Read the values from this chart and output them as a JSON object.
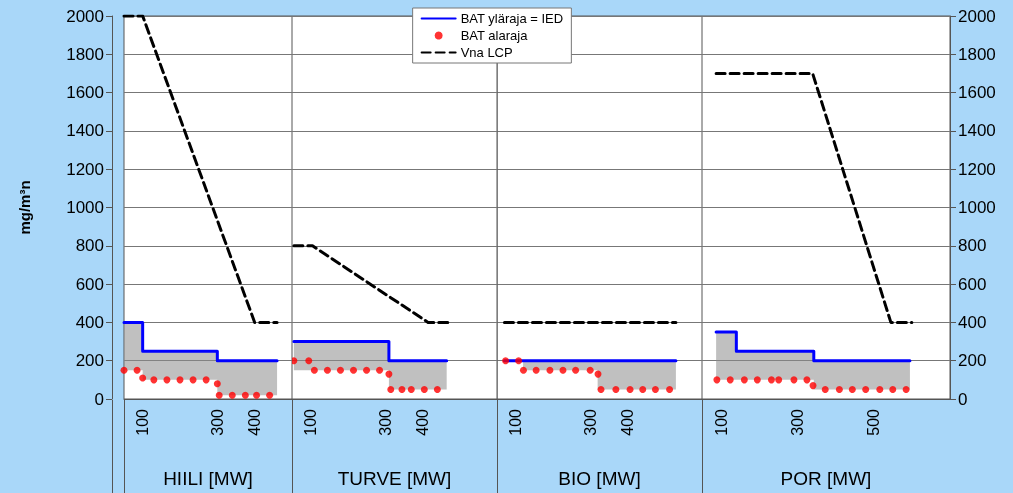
{
  "chart_data": [
    {
      "type": "line",
      "xlabel": "HIILI [MW]",
      "ylabel": "mg/m³n",
      "xlim": [
        50,
        500
      ],
      "xticks": [
        100,
        300,
        400
      ],
      "ylim": [
        0,
        2000
      ],
      "yticks": [
        0,
        200,
        400,
        600,
        800,
        1000,
        1200,
        1400,
        1600,
        1800,
        2000
      ],
      "grid": "y",
      "series": [
        {
          "type": "line",
          "color": "#0000ff",
          "line_style": "solid",
          "marker": "none",
          "x": [
            50,
            100,
            100,
            300,
            300,
            460
          ],
          "values": [
            400,
            400,
            250,
            250,
            200,
            200
          ],
          "upper": [
            400,
            400,
            250,
            250,
            200,
            200
          ],
          "lower": [
            150,
            150,
            100,
            100,
            20,
            20
          ]
        },
        {
          "type": "scatter",
          "color": "#ff0000",
          "marker": "circle",
          "x": [
            50,
            85,
            100,
            130,
            165,
            200,
            235,
            270,
            300,
            305,
            340,
            375,
            405,
            440
          ],
          "values": [
            150,
            150,
            110,
            100,
            100,
            100,
            100,
            100,
            80,
            20,
            20,
            20,
            20,
            20
          ]
        },
        {
          "type": "line",
          "color": "#000000",
          "line_style": "dashed",
          "marker": "none",
          "x": [
            50,
            100,
            400,
            460
          ],
          "values": [
            2000,
            2000,
            400,
            400
          ]
        }
      ]
    },
    {
      "type": "line",
      "xlabel": "TURVE [MW]",
      "xlim": [
        50,
        600
      ],
      "xticks": [
        100,
        300,
        400
      ],
      "ylim": [
        0,
        2000
      ],
      "yticks": [
        0,
        200,
        400,
        600,
        800,
        1000,
        1200,
        1400,
        1600,
        1800,
        2000
      ],
      "grid": "y",
      "tick_labels": "x",
      "legend": "top",
      "series": [
        {
          "type": "line",
          "name": "BAT yläraja = IED",
          "color": "#0000ff",
          "line_style": "solid",
          "marker": "none",
          "x": [
            55,
            310,
            310,
            465
          ],
          "values": [
            300,
            300,
            200,
            200
          ],
          "upper": [
            300,
            300,
            200,
            200
          ],
          "lower": [
            150,
            150,
            50,
            50
          ]
        },
        {
          "type": "scatter",
          "name": "BAT alaraja",
          "color": "#ff0000",
          "marker": "circle",
          "x": [
            55,
            95,
            110,
            145,
            180,
            215,
            250,
            285,
            310,
            315,
            345,
            370,
            405,
            440
          ],
          "values": [
            200,
            200,
            150,
            150,
            150,
            150,
            150,
            150,
            130,
            50,
            50,
            50,
            50,
            50
          ]
        },
        {
          "type": "line",
          "name": "Vna LCP",
          "color": "#000000",
          "line_style": "dashed",
          "marker": "none",
          "x": [
            55,
            105,
            415,
            470
          ],
          "values": [
            800,
            800,
            400,
            400
          ]
        }
      ]
    },
    {
      "type": "line",
      "xlabel": "BIO [MW]",
      "xlim": [
        50,
        600
      ],
      "xticks": [
        100,
        300,
        400
      ],
      "ylim": [
        0,
        2000
      ],
      "yticks": [
        0,
        200,
        400,
        600,
        800,
        1000,
        1200,
        1400,
        1600,
        1800,
        2000
      ],
      "grid": "y",
      "tick_labels": "x",
      "series": [
        {
          "type": "line",
          "color": "#0000ff",
          "line_style": "solid",
          "marker": "none",
          "x": [
            70,
            120,
            120,
            320,
            320,
            530
          ],
          "values": [
            200,
            200,
            200,
            200,
            200,
            200
          ],
          "upper": [
            200,
            200,
            200,
            200,
            200,
            200
          ],
          "lower": [
            200,
            200,
            150,
            150,
            50,
            50
          ]
        },
        {
          "type": "scatter",
          "color": "#ff0000",
          "marker": "circle",
          "x": [
            73,
            108,
            121,
            155,
            192,
            227,
            261,
            300,
            321,
            329,
            369,
            407,
            441,
            475,
            513
          ],
          "values": [
            200,
            200,
            150,
            150,
            150,
            150,
            150,
            150,
            130,
            50,
            50,
            50,
            50,
            50,
            50
          ]
        },
        {
          "type": "line",
          "color": "#000000",
          "line_style": "dashed",
          "marker": "none",
          "x": [
            70,
            530
          ],
          "values": [
            400,
            400
          ]
        }
      ]
    },
    {
      "type": "line",
      "xlabel": "POR [MW]",
      "xlim": [
        50,
        700
      ],
      "xticks": [
        100,
        300,
        500
      ],
      "ylim": [
        0,
        2000
      ],
      "yticks": [
        0,
        200,
        400,
        600,
        800,
        1000,
        1200,
        1400,
        1600,
        1800,
        2000
      ],
      "grid": "y",
      "series": [
        {
          "type": "line",
          "color": "#0000ff",
          "line_style": "solid",
          "marker": "none",
          "x": [
            87,
            140,
            140,
            343,
            343,
            595
          ],
          "values": [
            350,
            350,
            250,
            250,
            200,
            200
          ],
          "upper": [
            350,
            350,
            250,
            250,
            200,
            200
          ],
          "lower": [
            100,
            100,
            100,
            100,
            50,
            50
          ]
        },
        {
          "type": "scatter",
          "color": "#ff0000",
          "marker": "circle",
          "x": [
            89,
            124,
            161,
            195,
            232,
            251,
            291,
            325,
            341,
            373,
            410,
            444,
            479,
            516,
            550,
            585
          ],
          "values": [
            100,
            100,
            100,
            100,
            100,
            100,
            100,
            100,
            70,
            50,
            50,
            50,
            50,
            50,
            50,
            50
          ]
        },
        {
          "type": "line",
          "color": "#000000",
          "line_style": "dashed",
          "marker": "none",
          "x": [
            87,
            340,
            545,
            600
          ],
          "values": [
            1700,
            1700,
            400,
            400
          ]
        }
      ]
    }
  ]
}
